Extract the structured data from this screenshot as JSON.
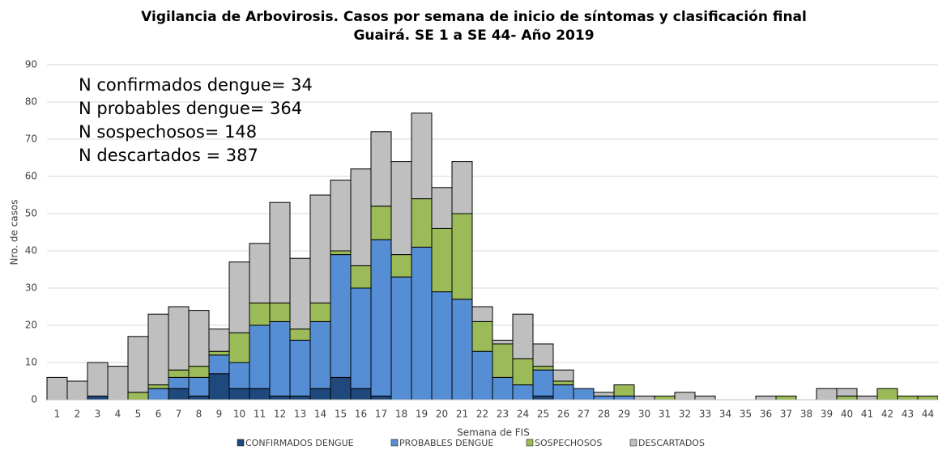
{
  "chart_data": {
    "type": "stacked_bar",
    "title": "Vigilancia de Arbovirosis. Casos por semana de inicio de síntomas y clasificación final",
    "subtitle": "Guairá. SE 1 a SE 44- Año 2019",
    "x_label": "Semana de FIS",
    "y_label": "Nro. de casos",
    "annotations": [
      "N confirmados dengue= 34",
      "N probables dengue= 364",
      "N sospechosos= 148",
      "N descartados = 387"
    ],
    "categories": [
      "1",
      "2",
      "3",
      "4",
      "5",
      "6",
      "7",
      "8",
      "9",
      "10",
      "11",
      "12",
      "13",
      "14",
      "15",
      "16",
      "17",
      "18",
      "19",
      "20",
      "21",
      "22",
      "23",
      "24",
      "25",
      "26",
      "27",
      "28",
      "29",
      "30",
      "31",
      "32",
      "33",
      "34",
      "35",
      "36",
      "37",
      "38",
      "39",
      "40",
      "41",
      "42",
      "43",
      "44"
    ],
    "series": [
      {
        "name": "CONFIRMADOS DENGUE",
        "color": "#1f497d",
        "values": [
          0,
          0,
          1,
          0,
          0,
          0,
          3,
          1,
          7,
          3,
          3,
          1,
          1,
          3,
          6,
          3,
          1,
          0,
          0,
          0,
          0,
          0,
          0,
          0,
          1,
          0,
          0,
          0,
          0,
          0,
          0,
          0,
          0,
          0,
          0,
          0,
          0,
          0,
          0,
          0,
          0,
          0,
          0,
          0
        ]
      },
      {
        "name": "PROBABLES DENGUE",
        "color": "#558ed5",
        "values": [
          0,
          0,
          0,
          0,
          0,
          3,
          3,
          5,
          5,
          7,
          17,
          20,
          15,
          18,
          33,
          27,
          42,
          33,
          41,
          29,
          27,
          13,
          6,
          4,
          7,
          4,
          3,
          1,
          1,
          0,
          0,
          0,
          0,
          0,
          0,
          0,
          0,
          0,
          0,
          0,
          0,
          0,
          0,
          0
        ]
      },
      {
        "name": "SOSPECHOSOS",
        "color": "#9bbb59",
        "values": [
          0,
          0,
          0,
          0,
          2,
          1,
          2,
          3,
          1,
          8,
          6,
          5,
          3,
          5,
          1,
          6,
          9,
          6,
          13,
          17,
          23,
          8,
          9,
          7,
          1,
          1,
          0,
          0,
          3,
          0,
          1,
          0,
          0,
          0,
          0,
          0,
          1,
          0,
          0,
          1,
          0,
          3,
          1,
          1
        ]
      },
      {
        "name": "DESCARTADOS",
        "color": "#bfbfbf",
        "values": [
          6,
          5,
          9,
          9,
          15,
          19,
          17,
          15,
          6,
          19,
          16,
          27,
          19,
          29,
          19,
          26,
          20,
          25,
          23,
          11,
          14,
          4,
          1,
          12,
          6,
          3,
          0,
          1,
          0,
          1,
          0,
          2,
          1,
          0,
          0,
          1,
          0,
          0,
          3,
          2,
          1,
          0,
          0,
          0
        ]
      }
    ],
    "ylim": [
      0,
      90
    ],
    "yticks": [
      0,
      10,
      20,
      30,
      40,
      50,
      60,
      70,
      80,
      90
    ],
    "grid": true
  }
}
